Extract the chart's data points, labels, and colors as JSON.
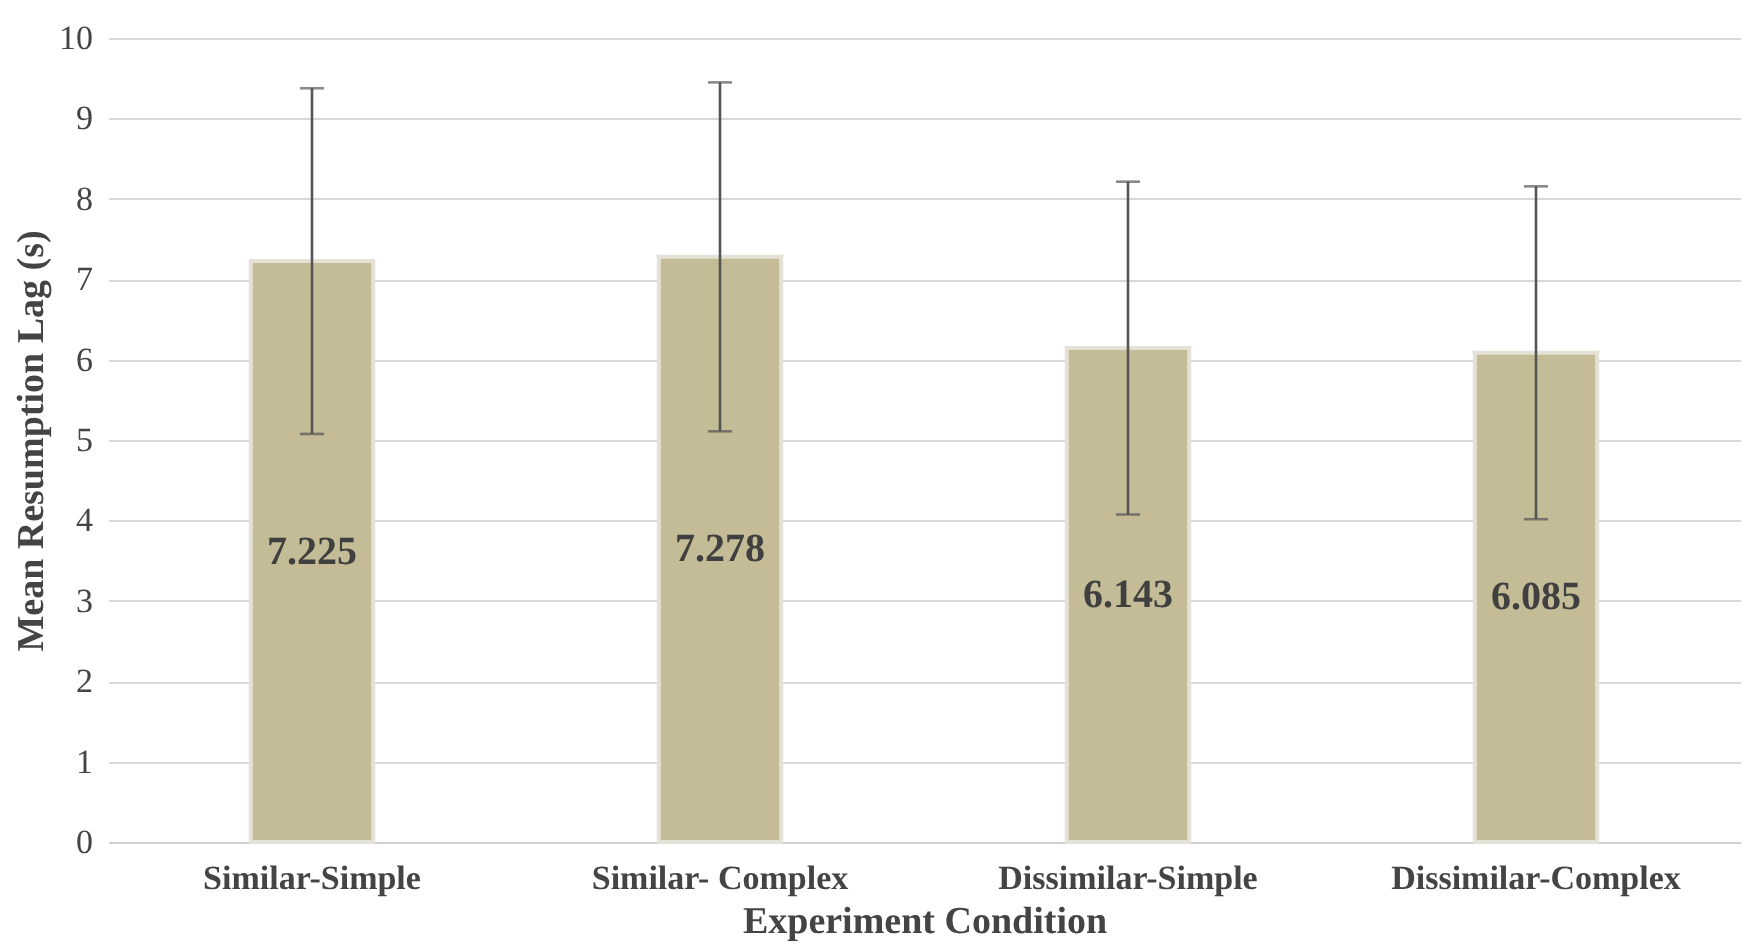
{
  "chart_data": {
    "type": "bar",
    "xlabel": "Experiment Condition",
    "ylabel": "Mean Resumption Lag (s)",
    "categories": [
      "Similar-Simple",
      "Similar- Complex",
      "Dissimilar-Simple",
      "Dissimilar-Complex"
    ],
    "values": [
      7.225,
      7.278,
      6.143,
      6.085
    ],
    "errors": [
      2.15,
      2.17,
      2.07,
      2.07
    ],
    "color": "#c4bc96",
    "ylim": [
      0,
      10
    ],
    "yticks": [
      0,
      1,
      2,
      3,
      4,
      5,
      6,
      7,
      8,
      9,
      10
    ],
    "grid": "y",
    "data_labels": true
  }
}
